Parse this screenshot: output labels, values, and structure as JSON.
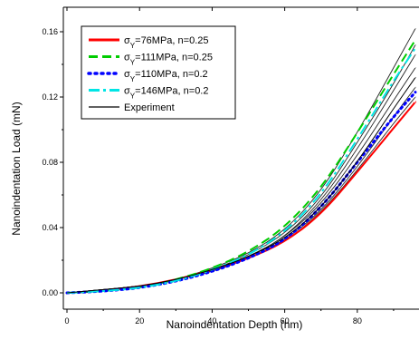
{
  "chart_data": {
    "type": "line",
    "title": "",
    "xlabel": "Nanoindentation Depth (nm)",
    "ylabel": "Nanoindentation Load (mN)",
    "xlim": [
      -1,
      97
    ],
    "ylim": [
      -0.01,
      0.175
    ],
    "x_ticks": [
      0,
      20,
      40,
      60,
      80
    ],
    "y_ticks": [
      0.0,
      0.04,
      0.08,
      0.12,
      0.16
    ],
    "x_tick_labels": [
      "0",
      "20",
      "40",
      "60",
      "80"
    ],
    "y_tick_labels": [
      "0.00",
      "0.04",
      "0.08",
      "0.12",
      "0.16"
    ],
    "grid": false,
    "legend_position": "top-left",
    "series": [
      {
        "name": "σY=76MPa, n=0.25",
        "legend_sym": "σ",
        "legend_sub": "Y",
        "legend_rest": "=76MPa, n=0.25",
        "color": "#ff0000",
        "style": "solid",
        "x": [
          0,
          10,
          20,
          30,
          40,
          50,
          60,
          70,
          80,
          90,
          96
        ],
        "y": [
          0.0,
          0.001,
          0.004,
          0.008,
          0.014,
          0.021,
          0.031,
          0.048,
          0.074,
          0.101,
          0.117
        ]
      },
      {
        "name": "σY=111MPa, n=0.25",
        "legend_sym": "σ",
        "legend_sub": "Y",
        "legend_rest": "=111MPa, n=0.25",
        "color": "#00cc00",
        "style": "dash",
        "x": [
          0,
          10,
          20,
          30,
          40,
          50,
          60,
          70,
          80,
          90,
          96
        ],
        "y": [
          0.0,
          0.001,
          0.003,
          0.008,
          0.015,
          0.025,
          0.04,
          0.064,
          0.098,
          0.134,
          0.155
        ]
      },
      {
        "name": "σY=110MPa, n=0.2",
        "legend_sym": "σ",
        "legend_sub": "Y",
        "legend_rest": "=110MPa, n=0.2",
        "color": "#0000ff",
        "style": "dot",
        "x": [
          0,
          10,
          20,
          30,
          40,
          50,
          60,
          70,
          80,
          90,
          96
        ],
        "y": [
          0.0,
          0.001,
          0.003,
          0.007,
          0.013,
          0.021,
          0.032,
          0.052,
          0.08,
          0.108,
          0.123
        ]
      },
      {
        "name": "σY=146MPa, n=0.2",
        "legend_sym": "σ",
        "legend_sub": "Y",
        "legend_rest": "=146MPa, n=0.2",
        "color": "#00e5e5",
        "style": "dashdot",
        "x": [
          0,
          10,
          20,
          30,
          40,
          50,
          60,
          70,
          80,
          90,
          96
        ],
        "y": [
          0.0,
          0.001,
          0.003,
          0.007,
          0.014,
          0.023,
          0.037,
          0.06,
          0.094,
          0.13,
          0.15
        ]
      },
      {
        "name": "Experiment",
        "legend_sym": "",
        "legend_sub": "",
        "legend_rest": "Experiment",
        "color": "#000000",
        "style": "solid",
        "x": [
          0,
          10,
          20,
          30,
          40,
          50,
          60,
          70,
          80,
          90,
          96
        ],
        "y": [
          0.0,
          0.002,
          0.004,
          0.008,
          0.014,
          0.022,
          0.033,
          0.052,
          0.08,
          0.113,
          0.132
        ]
      }
    ],
    "experiment_variants": [
      {
        "x": [
          0,
          10,
          20,
          30,
          40,
          50,
          60,
          70,
          80,
          90,
          96
        ],
        "y": [
          0.0,
          0.002,
          0.004,
          0.008,
          0.014,
          0.022,
          0.034,
          0.056,
          0.088,
          0.124,
          0.146
        ]
      },
      {
        "x": [
          0,
          10,
          20,
          30,
          40,
          50,
          60,
          70,
          80,
          90,
          96
        ],
        "y": [
          0.0,
          0.002,
          0.004,
          0.008,
          0.013,
          0.021,
          0.032,
          0.05,
          0.077,
          0.108,
          0.126
        ]
      },
      {
        "x": [
          0,
          10,
          20,
          30,
          40,
          50,
          60,
          70,
          80,
          90,
          96
        ],
        "y": [
          0.0,
          0.002,
          0.004,
          0.008,
          0.014,
          0.023,
          0.036,
          0.058,
          0.092,
          0.128,
          0.152
        ]
      },
      {
        "x": [
          0,
          10,
          20,
          30,
          40,
          50,
          60,
          70,
          80,
          90,
          96
        ],
        "y": [
          0.0,
          0.002,
          0.004,
          0.008,
          0.014,
          0.022,
          0.034,
          0.054,
          0.084,
          0.118,
          0.138
        ]
      },
      {
        "x": [
          0,
          10,
          20,
          30,
          40,
          50,
          60,
          70,
          80,
          90,
          96
        ],
        "y": [
          0.0,
          0.002,
          0.004,
          0.008,
          0.015,
          0.024,
          0.038,
          0.062,
          0.098,
          0.138,
          0.162
        ]
      },
      {
        "x": [
          0,
          10,
          20,
          30,
          40,
          50,
          60,
          70,
          80,
          90,
          96
        ],
        "y": [
          0.0,
          0.002,
          0.004,
          0.008,
          0.013,
          0.021,
          0.031,
          0.049,
          0.075,
          0.104,
          0.12
        ]
      }
    ]
  }
}
